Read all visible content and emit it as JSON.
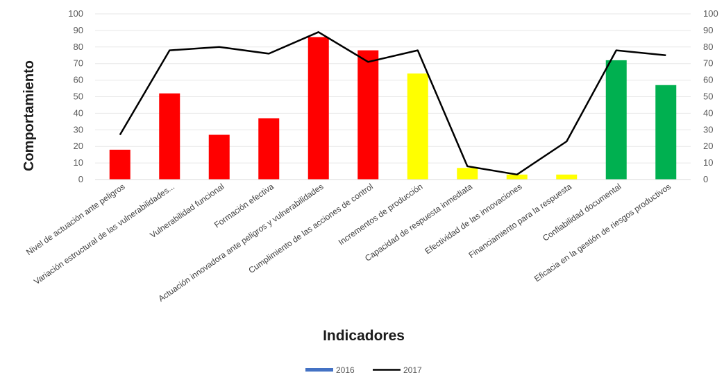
{
  "chart_data": {
    "type": "bar",
    "xlabel": "Indicadores",
    "ylabel": "Comportamiento",
    "ylim": [
      0,
      100
    ],
    "yticks": [
      0,
      10,
      20,
      30,
      40,
      50,
      60,
      70,
      80,
      90,
      100
    ],
    "categories": [
      "Nivel de actuación ante peligros",
      "Variación estructural de las vulnerabilidades...",
      "Vulnerabilidad funcional",
      "Formación efectiva",
      "Actuación innovadora ante peligros y vulnerabilidades",
      "Cumplimiento de las acciones de control",
      "Incrementos de producción",
      "Capacidad de respuesta inmediata",
      "Efectividad de las innovaciones",
      "Financiamiento para la respuesta",
      "Confiabilidad documental",
      "Eficacia en la gestión de riesgos productivos"
    ],
    "series": [
      {
        "name": "2016",
        "type": "bar",
        "values": [
          18,
          52,
          27,
          37,
          86,
          78,
          64,
          7,
          3,
          3,
          72,
          57
        ],
        "bar_colors": [
          "#ff0000",
          "#ff0000",
          "#ff0000",
          "#ff0000",
          "#ff0000",
          "#ff0000",
          "#ffff00",
          "#ffff00",
          "#ffff00",
          "#ffff00",
          "#00b050",
          "#00b050"
        ]
      },
      {
        "name": "2017",
        "type": "line",
        "color": "#000000",
        "values": [
          27,
          78,
          80,
          76,
          89,
          71,
          78,
          8,
          3,
          23,
          78,
          75
        ]
      }
    ],
    "legend": {
      "position": "bottom",
      "items": [
        {
          "label": "2016",
          "color": "#4472c4"
        },
        {
          "label": "2017",
          "color": "#000000"
        }
      ]
    },
    "secondary_axis": true,
    "grid": true
  }
}
